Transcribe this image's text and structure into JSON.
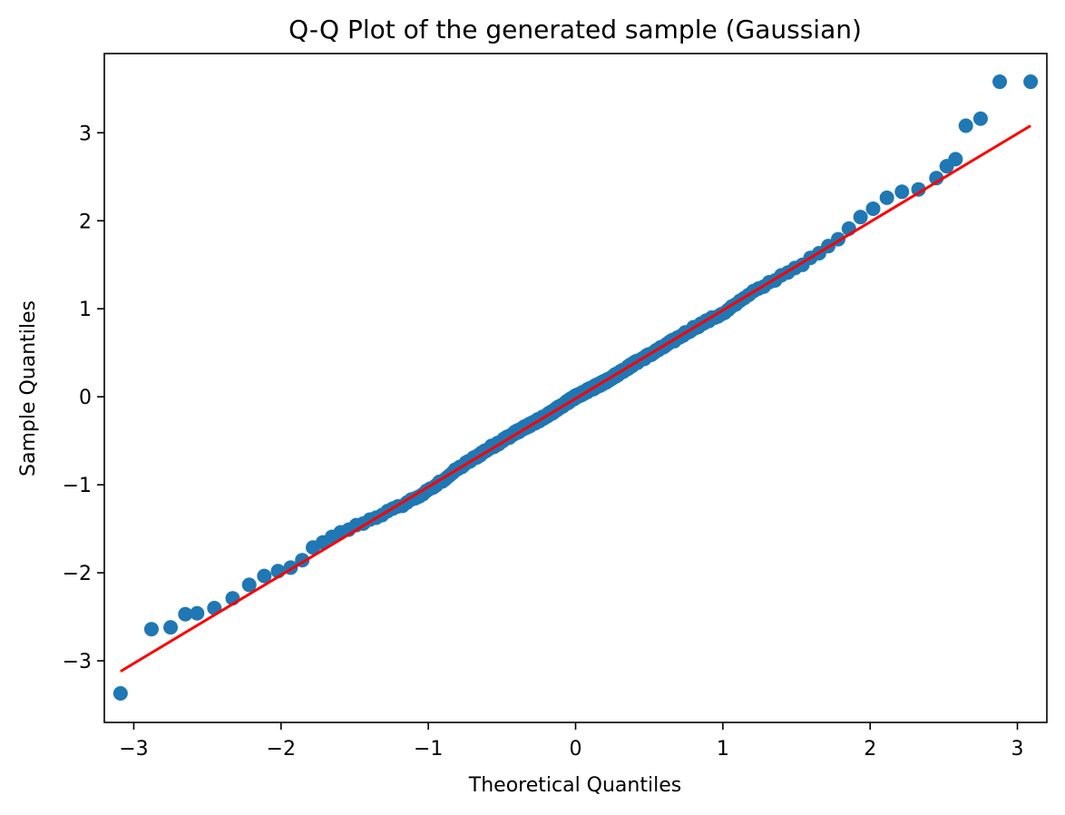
{
  "chart_data": {
    "type": "scatter",
    "title": "Q-Q Plot of the generated sample (Gaussian)",
    "xlabel": "Theoretical Quantiles",
    "ylabel": "Sample Quantiles",
    "xlim": [
      -3.2,
      3.2
    ],
    "ylim": [
      -3.7,
      3.9
    ],
    "xticks": [
      -3,
      -2,
      -1,
      0,
      1,
      2,
      3
    ],
    "xtick_labels": [
      "−3",
      "−2",
      "−1",
      "0",
      "1",
      "2",
      "3"
    ],
    "yticks": [
      -3,
      -2,
      -1,
      0,
      1,
      2,
      3
    ],
    "ytick_labels": [
      "−3",
      "−2",
      "−1",
      "0",
      "1",
      "2",
      "3"
    ],
    "grid": false,
    "marker_color": "#1f77b4",
    "line_color": "#ff0000",
    "reference_line": {
      "x": [
        -3.09,
        3.09
      ],
      "y": [
        -3.12,
        3.08
      ]
    },
    "outliers": [
      {
        "x": -3.09,
        "y": -3.37
      },
      {
        "x": -2.88,
        "y": -2.64
      },
      {
        "x": -2.75,
        "y": -2.62
      },
      {
        "x": -2.65,
        "y": -2.47
      },
      {
        "x": -2.57,
        "y": -2.46
      },
      {
        "x": 2.52,
        "y": 2.62
      },
      {
        "x": 2.58,
        "y": 2.7
      },
      {
        "x": 2.65,
        "y": 3.08
      },
      {
        "x": 2.75,
        "y": 3.16
      },
      {
        "x": 2.88,
        "y": 3.58
      },
      {
        "x": 3.09,
        "y": 3.58
      }
    ],
    "dense_anchors": [
      [
        -2.52,
        -2.45
      ],
      [
        -2.4,
        -2.37
      ],
      [
        -2.3,
        -2.25
      ],
      [
        -2.2,
        -2.12
      ],
      [
        -2.05,
        -2.0
      ],
      [
        -1.9,
        -1.93
      ],
      [
        -1.8,
        -1.74
      ],
      [
        -1.6,
        -1.55
      ],
      [
        -1.4,
        -1.4
      ],
      [
        -1.2,
        -1.25
      ],
      [
        -1.0,
        -1.07
      ],
      [
        -0.8,
        -0.82
      ],
      [
        -0.6,
        -0.6
      ],
      [
        -0.4,
        -0.4
      ],
      [
        -0.2,
        -0.22
      ],
      [
        0.0,
        0.0
      ],
      [
        0.2,
        0.17
      ],
      [
        0.4,
        0.38
      ],
      [
        0.6,
        0.57
      ],
      [
        0.8,
        0.78
      ],
      [
        1.0,
        0.95
      ],
      [
        1.2,
        1.18
      ],
      [
        1.4,
        1.38
      ],
      [
        1.6,
        1.57
      ],
      [
        1.8,
        1.8
      ],
      [
        1.9,
        2.0
      ],
      [
        2.0,
        2.1
      ],
      [
        2.1,
        2.27
      ],
      [
        2.25,
        2.33
      ],
      [
        2.4,
        2.4
      ],
      [
        2.45,
        2.5
      ]
    ],
    "dense_count": 489
  }
}
